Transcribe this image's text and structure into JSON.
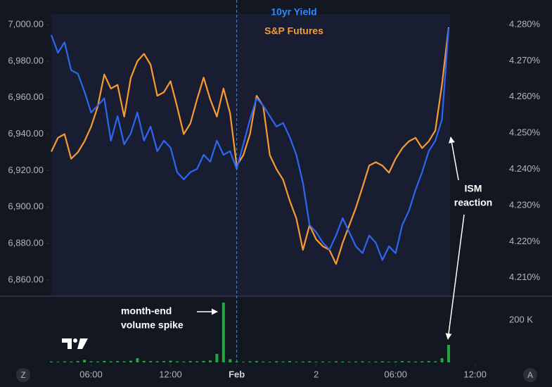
{
  "chart_data": [
    {
      "type": "line",
      "x": [
        3,
        3.5,
        4,
        4.5,
        5,
        5.5,
        6,
        6.5,
        7,
        7.5,
        8,
        8.5,
        9,
        9.5,
        10,
        10.5,
        11,
        11.5,
        12,
        12.5,
        13,
        13.5,
        14,
        14.5,
        15,
        15.5,
        16,
        16.5,
        17,
        17.5,
        18,
        18.5,
        19,
        19.5,
        20,
        20.5,
        21,
        21.5,
        22,
        22.5,
        23,
        23.5,
        24,
        24.5,
        25,
        25.5,
        26,
        26.5,
        27,
        27.5,
        28,
        28.5,
        29,
        29.5,
        30,
        30.5,
        31,
        31.5,
        32,
        32.5,
        33
      ],
      "xlim": [
        3,
        37.25
      ],
      "series": [
        {
          "name": "10yr Yield",
          "color": "#2f66f0",
          "axis": "y2",
          "values": [
            4.2771,
            4.2722,
            4.2751,
            4.2674,
            4.2664,
            4.2615,
            4.2557,
            4.2576,
            4.2596,
            4.2479,
            4.2547,
            4.2469,
            4.2499,
            4.2557,
            4.2479,
            4.2518,
            4.245,
            4.2479,
            4.246,
            4.2392,
            4.2372,
            4.2392,
            4.2401,
            4.244,
            4.2421,
            4.2479,
            4.244,
            4.245,
            4.2401,
            4.2469,
            4.2537,
            4.2596,
            4.2576,
            4.2547,
            4.2518,
            4.2528,
            4.2489,
            4.244,
            4.2362,
            4.2246,
            4.2226,
            4.2197,
            4.2178,
            4.2217,
            4.2265,
            4.2226,
            4.2187,
            4.2168,
            4.2217,
            4.2197,
            4.2149,
            4.2187,
            4.2168,
            4.2246,
            4.2285,
            4.2343,
            4.2392,
            4.245,
            4.2479,
            4.2537,
            4.279
          ]
        },
        {
          "name": "S&P Futures",
          "color": "#f89b33",
          "values": [
            6930.4,
            6938,
            6940,
            6926.5,
            6930,
            6936,
            6944,
            6955,
            6972.7,
            6965,
            6967,
            6949.6,
            6970.8,
            6980,
            6984,
            6978,
            6961,
            6963,
            6969,
            6955,
            6940,
            6945.8,
            6959,
            6971,
            6959,
            6949.6,
            6965,
            6951.5,
            6922.7,
            6928.5,
            6940,
            6961,
            6955.4,
            6928.5,
            6920.8,
            6915,
            6903.5,
            6893.8,
            6876.5,
            6890,
            6882.3,
            6878.5,
            6876.5,
            6868.8,
            6880.4,
            6890,
            6899.6,
            6911,
            6922.7,
            6924.6,
            6922.7,
            6918.8,
            6926.5,
            6932.3,
            6936,
            6938,
            6932.3,
            6936,
            6942,
            6967,
            6998.5
          ]
        }
      ],
      "ylim": [
        6851.5,
        7005.8
      ],
      "yticks": [
        {
          "value": 6860,
          "label": "6,860.00"
        },
        {
          "value": 6880,
          "label": "6,880.00"
        },
        {
          "value": 6900,
          "label": "6,900.00"
        },
        {
          "value": 6920,
          "label": "6,920.00"
        },
        {
          "value": 6940,
          "label": "6,940.00"
        },
        {
          "value": 6960,
          "label": "6,960.00"
        },
        {
          "value": 6980,
          "label": "6,980.00"
        },
        {
          "value": 7000,
          "label": "7,000.00"
        }
      ],
      "y2lim": [
        4.2051,
        4.2829
      ],
      "y2ticks": [
        {
          "value": 4.21,
          "label": "4.210%"
        },
        {
          "value": 4.22,
          "label": "4.220%"
        },
        {
          "value": 4.23,
          "label": "4.230%"
        },
        {
          "value": 4.24,
          "label": "4.240%"
        },
        {
          "value": 4.25,
          "label": "4.250%"
        },
        {
          "value": 4.26,
          "label": "4.260%"
        },
        {
          "value": 4.27,
          "label": "4.270%"
        },
        {
          "value": 4.28,
          "label": "4.280%"
        }
      ],
      "annotations": [
        {
          "lines": [
            "ISM",
            "reaction"
          ]
        }
      ]
    },
    {
      "type": "bar",
      "x": [
        3,
        3.5,
        4,
        4.5,
        5,
        5.5,
        6,
        6.5,
        7,
        7.5,
        8,
        8.5,
        9,
        9.5,
        10,
        10.5,
        11,
        11.5,
        12,
        12.5,
        13,
        13.5,
        14,
        14.5,
        15,
        15.5,
        16,
        16.5,
        17,
        17.5,
        18,
        18.5,
        19,
        19.5,
        20,
        20.5,
        21,
        21.5,
        22,
        22.5,
        23,
        23.5,
        24,
        24.5,
        25,
        25.5,
        26,
        26.5,
        27,
        27.5,
        28,
        28.5,
        29,
        29.5,
        30,
        30.5,
        31,
        31.5,
        32,
        32.5,
        33
      ],
      "values": [
        4000,
        3000,
        5000,
        4000,
        6000,
        12000,
        5000,
        4000,
        7000,
        5000,
        6000,
        5000,
        8000,
        20000,
        7000,
        6000,
        5000,
        6000,
        8000,
        5000,
        4000,
        6000,
        5000,
        7000,
        9000,
        40000,
        283000,
        15000,
        4000,
        3000,
        5000,
        6000,
        4000,
        3000,
        5000,
        4000,
        6000,
        3000,
        4000,
        5000,
        3000,
        4000,
        3000,
        5000,
        4000,
        3000,
        4000,
        5000,
        3000,
        4000,
        5000,
        3000,
        4000,
        6000,
        5000,
        4000,
        5000,
        6000,
        5000,
        20000,
        83000
      ],
      "color": "#26a641",
      "xlim": [
        3,
        37.25
      ],
      "xticks": [
        {
          "value": 6,
          "label": "06:00"
        },
        {
          "value": 12,
          "label": "12:00"
        },
        {
          "value": 17,
          "label": "Feb"
        },
        {
          "value": 23,
          "label": "2"
        },
        {
          "value": 29,
          "label": "06:00"
        },
        {
          "value": 35,
          "label": "12:00"
        }
      ],
      "ylim": [
        0,
        300000
      ],
      "yticks": [
        {
          "value": 200000,
          "label": "200 K"
        }
      ],
      "annotations": [
        {
          "lines": [
            "month-end",
            "volume spike"
          ]
        }
      ]
    }
  ],
  "ui": {
    "buttons": [
      "Z",
      "A"
    ]
  }
}
